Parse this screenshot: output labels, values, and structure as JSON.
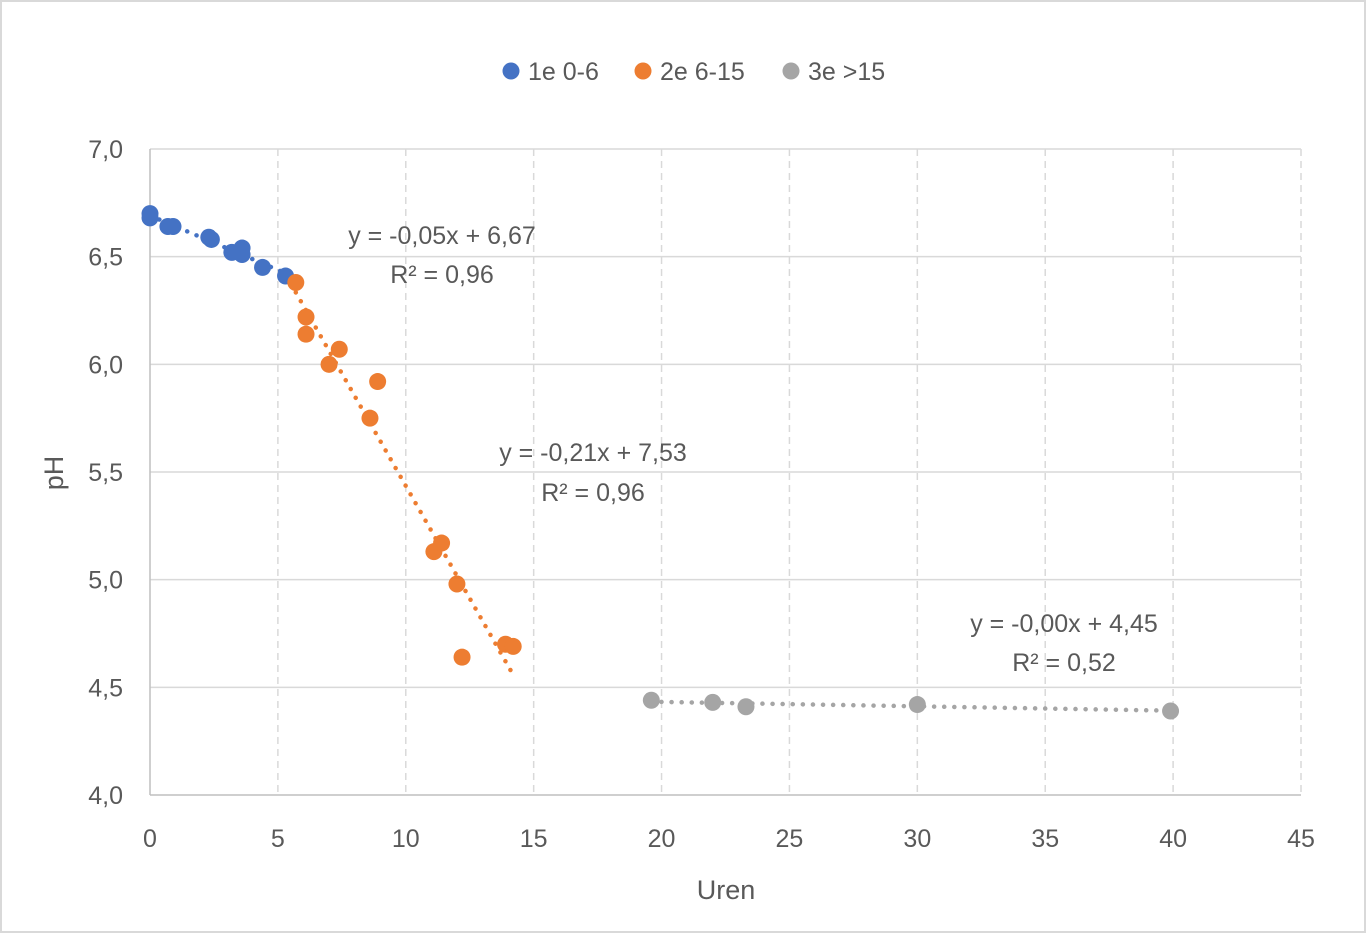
{
  "chart_data": {
    "type": "scatter",
    "xlabel": "Uren",
    "ylabel": "pH",
    "xlim": [
      0,
      45
    ],
    "ylim": [
      4.0,
      7.0
    ],
    "x_ticks": [
      0,
      5,
      10,
      15,
      20,
      25,
      30,
      35,
      40,
      45
    ],
    "x_tick_labels": [
      "0",
      "5",
      "10",
      "15",
      "20",
      "25",
      "30",
      "35",
      "40",
      "45"
    ],
    "y_ticks": [
      4.0,
      4.5,
      5.0,
      5.5,
      6.0,
      6.5,
      7.0
    ],
    "y_tick_labels": [
      "4,0",
      "4,5",
      "5,0",
      "5,5",
      "6,0",
      "6,5",
      "7,0"
    ],
    "grid": "dashed",
    "legend_position": "top",
    "series": [
      {
        "name": "1e 0-6",
        "color": "#4472C4",
        "points": [
          [
            0.0,
            6.7
          ],
          [
            0.0,
            6.68
          ],
          [
            0.7,
            6.64
          ],
          [
            0.9,
            6.64
          ],
          [
            2.3,
            6.59
          ],
          [
            2.4,
            6.58
          ],
          [
            3.2,
            6.52
          ],
          [
            3.5,
            6.52
          ],
          [
            3.6,
            6.54
          ],
          [
            3.6,
            6.51
          ],
          [
            4.4,
            6.45
          ],
          [
            5.3,
            6.41
          ]
        ],
        "trendline": {
          "x_range": [
            0.0,
            5.3
          ],
          "label": "y = -0,05x + 6,67",
          "r2": "R² = 0,96"
        }
      },
      {
        "name": "2e 6-15",
        "color": "#ED7D31",
        "points": [
          [
            5.7,
            6.38
          ],
          [
            6.1,
            6.22
          ],
          [
            6.1,
            6.14
          ],
          [
            7.0,
            6.0
          ],
          [
            7.4,
            6.07
          ],
          [
            8.6,
            5.75
          ],
          [
            8.9,
            5.92
          ],
          [
            11.1,
            5.13
          ],
          [
            11.4,
            5.17
          ],
          [
            12.0,
            4.98
          ],
          [
            12.2,
            4.64
          ],
          [
            13.9,
            4.7
          ],
          [
            14.2,
            4.69
          ]
        ],
        "trendline": {
          "x_range": [
            5.7,
            14.2
          ],
          "label": "y = -0,21x + 7,53",
          "r2": "R² = 0,96"
        }
      },
      {
        "name": "3e >15",
        "color": "#A5A5A5",
        "points": [
          [
            19.6,
            4.44
          ],
          [
            22.0,
            4.43
          ],
          [
            23.3,
            4.41
          ],
          [
            30.0,
            4.42
          ],
          [
            39.9,
            4.39
          ]
        ],
        "trendline": {
          "x_range": [
            19.6,
            39.9
          ],
          "label": "y = -0,00x + 4,45",
          "r2": "R² = 0,52"
        }
      }
    ]
  }
}
